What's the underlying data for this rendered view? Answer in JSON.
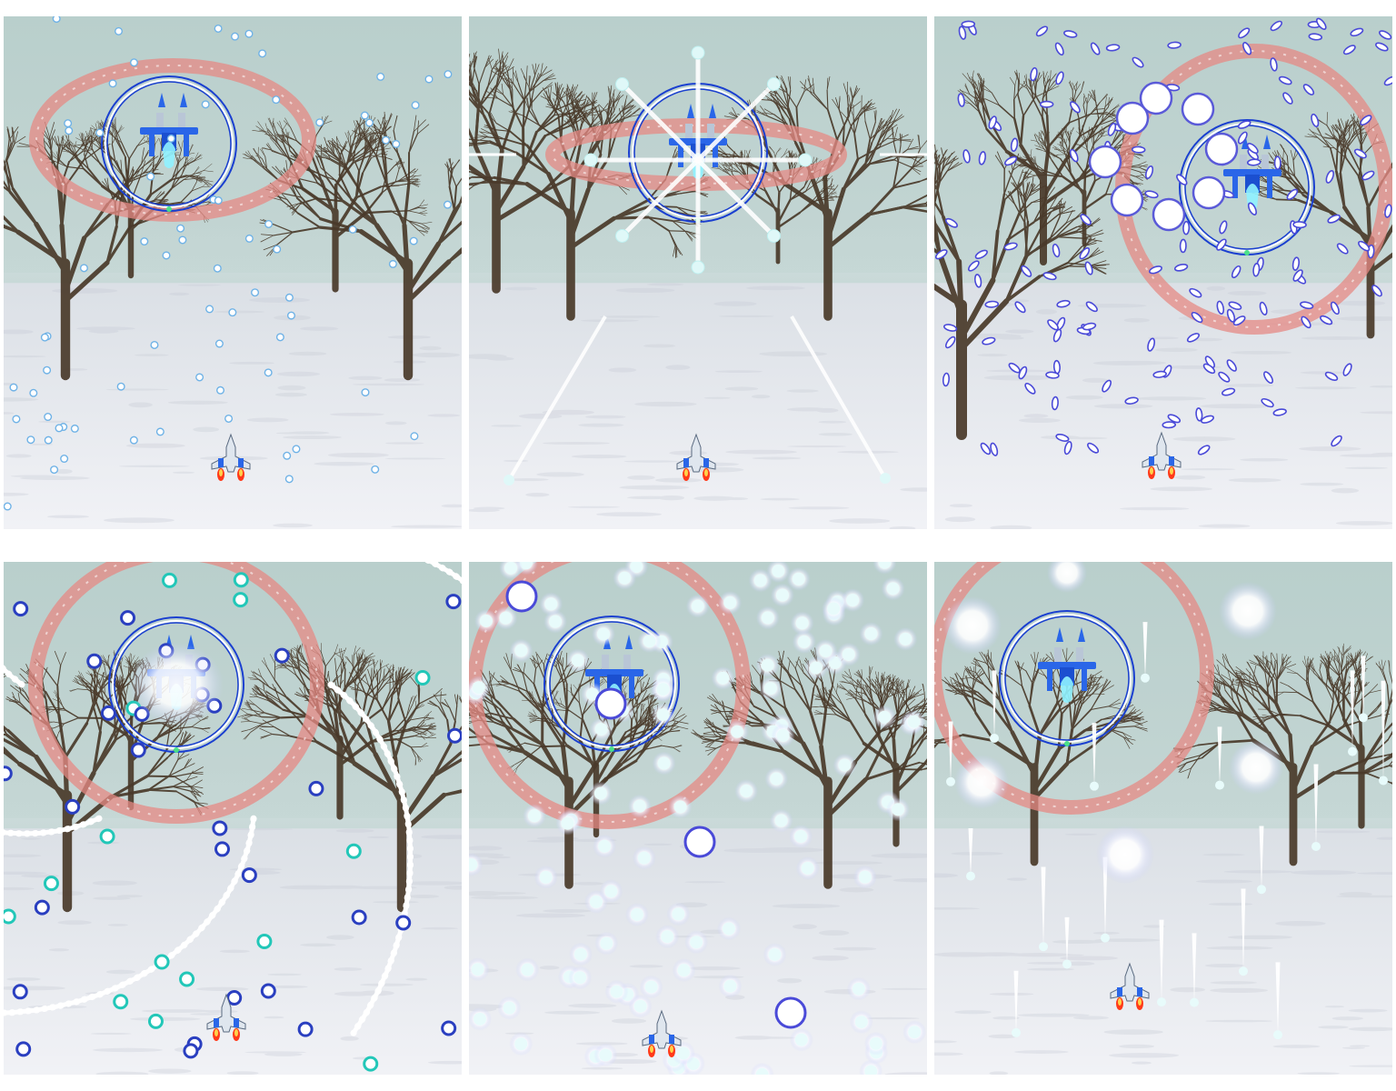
{
  "screenshot_grid": {
    "rows": 2,
    "columns": 3,
    "panels": [
      {
        "id": "p1",
        "pattern": "scattered-small-bullets",
        "bullet_color": "#6fb2e6",
        "ring_color": "#e58a84",
        "boss_shield_color": "#1a3fd0"
      },
      {
        "id": "p2",
        "pattern": "radial-laser-burst",
        "bullet_color": "#dff8f8",
        "ring_color": "#e58a84",
        "boss_shield_color": "#1a3fd0"
      },
      {
        "id": "p3",
        "pattern": "rice-bullets-and-orbs",
        "bullet_color": "#4a4ad8",
        "ring_color": "#e58a84",
        "boss_shield_color": "#1a3fd0"
      },
      {
        "id": "p4",
        "pattern": "spiral-arms-and-rings",
        "bullet_color": "#22c7b8",
        "ring_color": "#e58a84",
        "boss_shield_color": "#1a3fd0"
      },
      {
        "id": "p5",
        "pattern": "glowing-orb-scatter",
        "bullet_color": "#e8fbfb",
        "ring_color": "#e58a84",
        "boss_shield_color": "#1a3fd0"
      },
      {
        "id": "p6",
        "pattern": "falling-needles-and-glows",
        "bullet_color": "#ffffff",
        "ring_color": "#e58a84",
        "boss_shield_color": "#1a3fd0"
      }
    ]
  },
  "colors": {
    "sky": "#c3d5d3",
    "snow": "#e9ebf0",
    "tree_trunk": "#4a3a2a",
    "player_flame": "#ff3a1a",
    "player_body": "#dfe6ee",
    "boss_body": "#2a66e8",
    "boss_core": "#8ff2ff"
  },
  "icons": {
    "player": "player-jet-icon",
    "boss": "boss-ship-icon"
  }
}
